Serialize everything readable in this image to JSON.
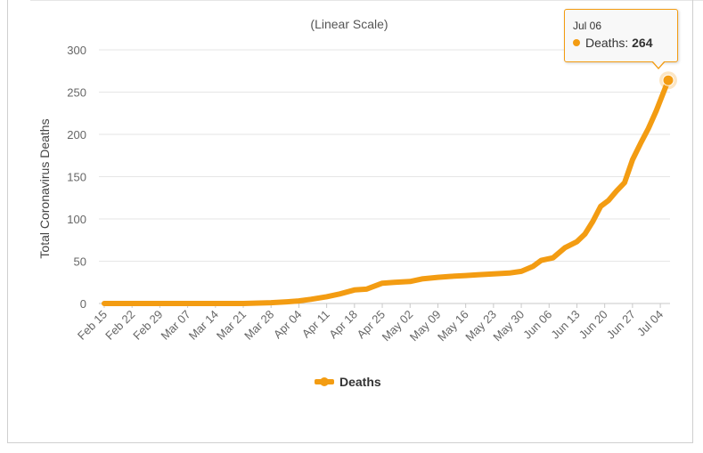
{
  "chart_data": {
    "type": "line",
    "subtitle": "(Linear Scale)",
    "ylabel": "Total Coronavirus Deaths",
    "xlabel": "",
    "ylim": [
      0,
      300
    ],
    "y_ticks": [
      0,
      50,
      100,
      150,
      200,
      250,
      300
    ],
    "x_tick_labels": [
      "Feb 15",
      "Feb 22",
      "Feb 29",
      "Mar 07",
      "Mar 14",
      "Mar 21",
      "Mar 28",
      "Apr 04",
      "Apr 11",
      "Apr 18",
      "Apr 25",
      "May 02",
      "May 09",
      "May 16",
      "May 23",
      "May 30",
      "Jun 06",
      "Jun 13",
      "Jun 20",
      "Jun 27",
      "Jul 04"
    ],
    "grid": "horizontal",
    "legend_position": "bottom",
    "series": [
      {
        "name": "Deaths",
        "color": "#f39c12",
        "points": [
          [
            "Feb 15",
            0
          ],
          [
            "Mar 21",
            0
          ],
          [
            "Mar 28",
            1
          ],
          [
            "Apr 01",
            2
          ],
          [
            "Apr 04",
            3
          ],
          [
            "Apr 07",
            5
          ],
          [
            "Apr 11",
            8
          ],
          [
            "Apr 14",
            11
          ],
          [
            "Apr 18",
            16
          ],
          [
            "Apr 21",
            17
          ],
          [
            "Apr 25",
            24
          ],
          [
            "Apr 28",
            25
          ],
          [
            "May 02",
            26
          ],
          [
            "May 05",
            29
          ],
          [
            "May 09",
            31
          ],
          [
            "May 12",
            32
          ],
          [
            "May 16",
            33
          ],
          [
            "May 19",
            34
          ],
          [
            "May 23",
            35
          ],
          [
            "May 27",
            36
          ],
          [
            "May 30",
            38
          ],
          [
            "Jun 02",
            44
          ],
          [
            "Jun 04",
            51
          ],
          [
            "Jun 07",
            54
          ],
          [
            "Jun 10",
            66
          ],
          [
            "Jun 13",
            73
          ],
          [
            "Jun 15",
            82
          ],
          [
            "Jun 17",
            97
          ],
          [
            "Jun 19",
            115
          ],
          [
            "Jun 21",
            122
          ],
          [
            "Jun 23",
            133
          ],
          [
            "Jun 25",
            143
          ],
          [
            "Jun 27",
            170
          ],
          [
            "Jun 29",
            189
          ],
          [
            "Jul 01",
            207
          ],
          [
            "Jul 03",
            228
          ],
          [
            "Jul 06",
            264
          ]
        ]
      }
    ],
    "tooltip": {
      "date": "Jul 06",
      "series": "Deaths",
      "value": 264
    }
  }
}
